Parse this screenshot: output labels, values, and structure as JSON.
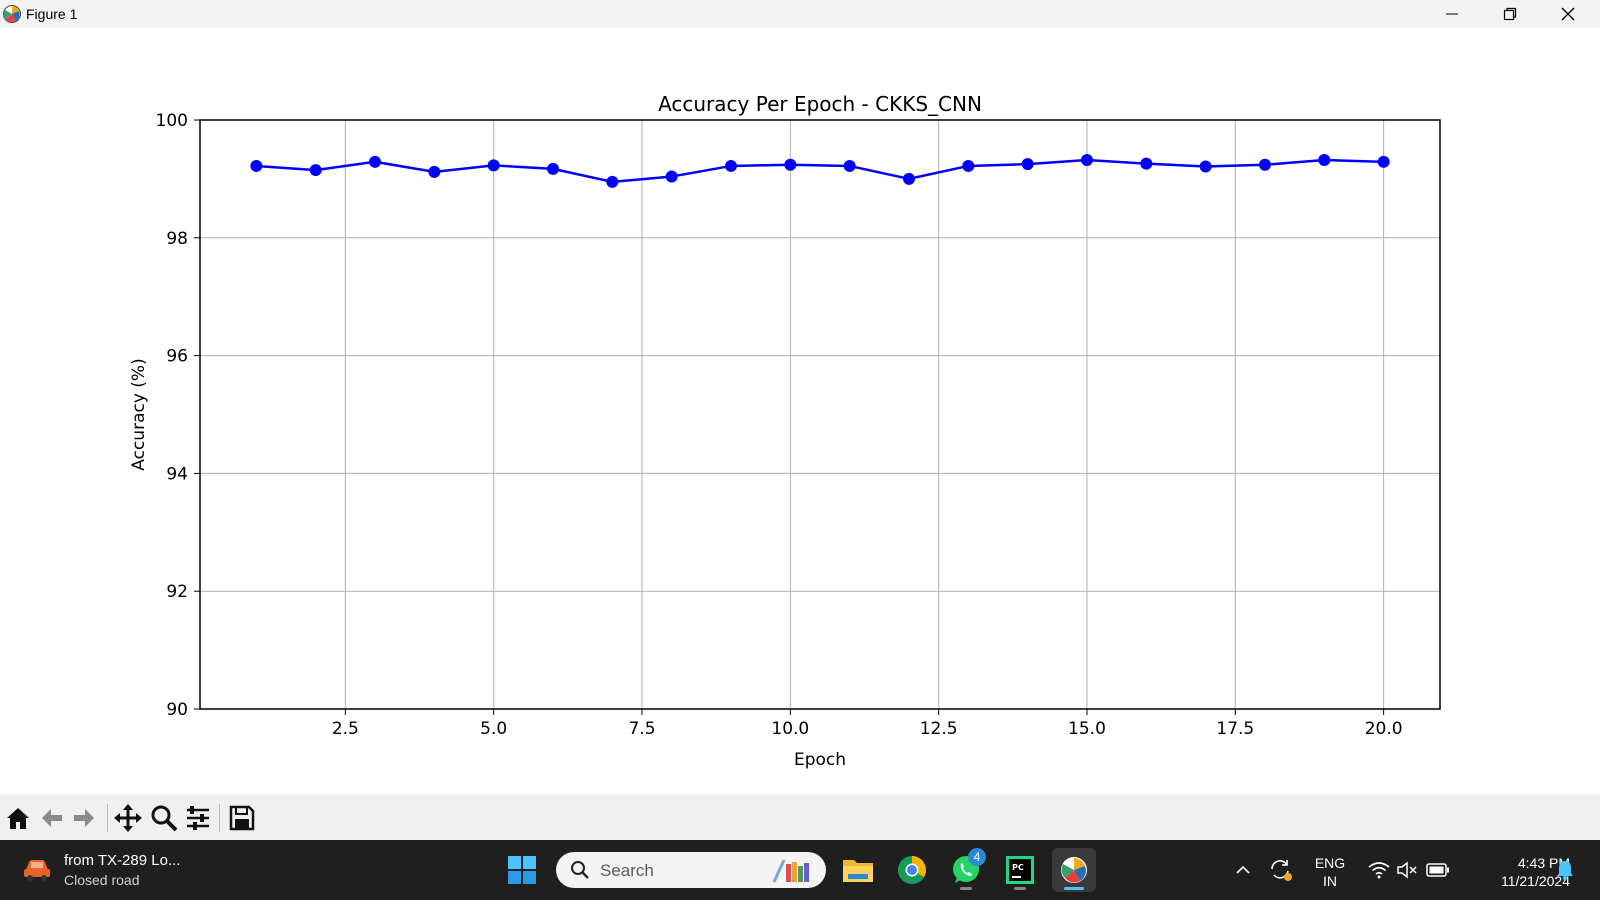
{
  "window": {
    "title": "Figure 1"
  },
  "chart_data": {
    "type": "line",
    "title": "Accuracy Per Epoch - CKKS_CNN",
    "xlabel": "Epoch",
    "ylabel": "Accuracy (%)",
    "xlim": [
      0.05,
      20.95
    ],
    "ylim": [
      90,
      100
    ],
    "x_ticks": [
      "2.5",
      "5.0",
      "7.5",
      "10.0",
      "12.5",
      "15.0",
      "17.5",
      "20.0"
    ],
    "x_tick_values": [
      2.5,
      5.0,
      7.5,
      10.0,
      12.5,
      15.0,
      17.5,
      20.0
    ],
    "y_ticks": [
      "90",
      "92",
      "94",
      "96",
      "98",
      "100"
    ],
    "y_tick_values": [
      90,
      92,
      94,
      96,
      98,
      100
    ],
    "grid": true,
    "color": "#0000ff",
    "series": [
      {
        "x": [
          1,
          2,
          3,
          4,
          5,
          6,
          7,
          8,
          9,
          10,
          11,
          12,
          13,
          14,
          15,
          16,
          17,
          18,
          19,
          20
        ],
        "values": [
          99.22,
          99.15,
          99.29,
          99.12,
          99.23,
          99.17,
          98.95,
          99.04,
          99.22,
          99.24,
          99.22,
          99.0,
          99.22,
          99.25,
          99.32,
          99.26,
          99.21,
          99.24,
          99.32,
          99.29
        ]
      }
    ]
  },
  "toolbar": {
    "buttons": [
      "home-icon",
      "back-arrow-icon",
      "forward-arrow-icon",
      "pan-icon",
      "zoom-icon",
      "configure-subplots-icon",
      "save-icon"
    ]
  },
  "taskbar": {
    "news_line1": "from TX-289 Lo...",
    "news_line2": "Closed road",
    "search_placeholder": "Search",
    "whatsapp_badge": "4",
    "lang_line1": "ENG",
    "lang_line2": "IN",
    "time": "4:43 PM",
    "date": "11/21/2024"
  }
}
